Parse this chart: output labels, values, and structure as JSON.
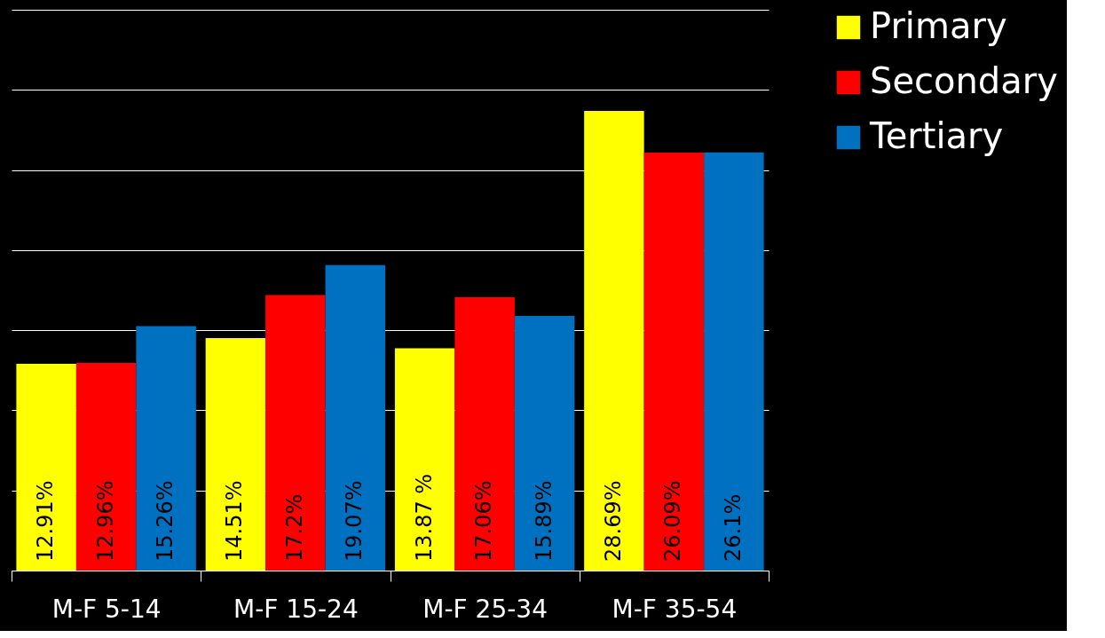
{
  "chart_data": {
    "type": "bar",
    "categories": [
      "M-F 5-14",
      "M-F 15-24",
      "M-F 25-34",
      "M-F 35-54"
    ],
    "series": [
      {
        "name": "Primary",
        "color": "#ffff00",
        "values": [
          12.91,
          14.51,
          13.87,
          28.69
        ],
        "value_labels": [
          "12.91%",
          "14.51%",
          "13.87 %",
          "28.69%"
        ]
      },
      {
        "name": "Secondary",
        "color": "#ff0000",
        "values": [
          12.96,
          17.2,
          17.06,
          26.09
        ],
        "value_labels": [
          "12.96%",
          "17.2%",
          "17.06%",
          "26.09%"
        ]
      },
      {
        "name": "Tertiary",
        "color": "#0070c0",
        "values": [
          15.26,
          19.07,
          15.89,
          26.1
        ],
        "value_labels": [
          "15.26%",
          "19.07%",
          "15.89%",
          "26.1%"
        ]
      }
    ],
    "ylim": [
      0,
      35
    ],
    "yticks": [
      {
        "value": 0,
        "label": null
      },
      {
        "value": 5,
        "label": null
      },
      {
        "value": 10,
        "label": null
      },
      {
        "value": 15,
        "label": null
      },
      {
        "value": 20,
        "label": null
      },
      {
        "value": 25,
        "label": null
      },
      {
        "value": 30,
        "label": null
      },
      {
        "value": 35,
        "label": null
      }
    ],
    "grid": "y",
    "legend": "right",
    "tick_labels": "x"
  }
}
